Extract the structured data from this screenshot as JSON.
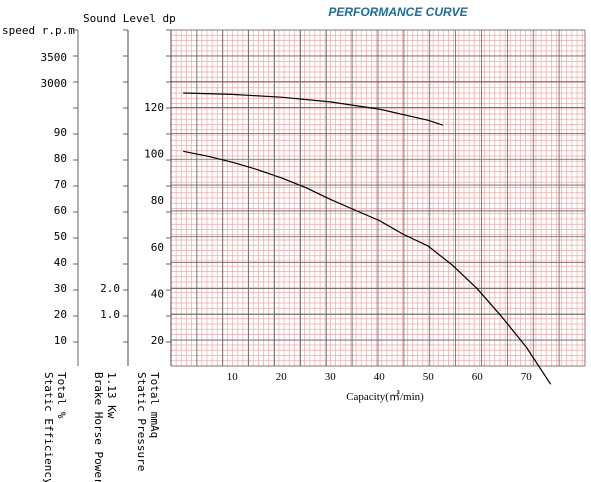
{
  "chart_data": {
    "type": "line",
    "title": "PERFORMANCE CURVE",
    "xlabel": "Capacity(㎥/min)",
    "xlim": [
      -2.5,
      82
    ],
    "x_ticks": [
      "10",
      "20",
      "30",
      "40",
      "50",
      "60",
      "70"
    ],
    "grid": true,
    "series": [
      {
        "x": [
          0,
          10,
          20,
          30,
          40,
          50,
          53
        ],
        "y": [
          126,
          125.4,
          124.2,
          122.2,
          119.1,
          114.3,
          112.2
        ]
      },
      {
        "x": [
          0,
          5,
          10,
          15,
          20,
          25,
          30,
          35,
          40,
          45,
          50,
          55,
          60,
          65,
          70,
          75
        ],
        "y": [
          101,
          98.9,
          96.3,
          93.2,
          89.6,
          85.4,
          80.4,
          75.8,
          71.3,
          65.3,
          60.3,
          52,
          42,
          30,
          17,
          1
        ]
      }
    ],
    "axes": [
      {
        "label": "speed r.p.m",
        "ticks": [
          {
            "label": "3500",
            "value": 3500
          },
          {
            "label": "3000",
            "value": 3000
          }
        ]
      },
      {
        "label": "",
        "ticks": [
          {
            "label": "90",
            "value": 90
          },
          {
            "label": "80",
            "value": 80
          },
          {
            "label": "70",
            "value": 70
          },
          {
            "label": "60",
            "value": 60
          },
          {
            "label": "50",
            "value": 50
          },
          {
            "label": "40",
            "value": 40
          },
          {
            "label": "30",
            "value": 30
          },
          {
            "label": "20",
            "value": 20
          },
          {
            "label": "10",
            "value": 10
          }
        ]
      },
      {
        "label": "Sound Level dp",
        "ticks": [
          {
            "label": "2.0",
            "value": 2.0
          },
          {
            "label": "1.0",
            "value": 1.0
          }
        ]
      },
      {
        "label": "",
        "ticks": [
          {
            "label": "120",
            "value": 120
          },
          {
            "label": "100",
            "value": 100
          },
          {
            "label": "80",
            "value": 80
          },
          {
            "label": "60",
            "value": 60
          },
          {
            "label": "40",
            "value": 40
          },
          {
            "label": "20",
            "value": 20
          }
        ]
      }
    ],
    "bottom_labels": [
      [
        "Total   %",
        "Static Efficiency"
      ],
      [
        "1.13 Kw",
        "Brake Horse Power"
      ],
      [
        "Total mmAq",
        "Static Pressure"
      ]
    ]
  },
  "colors": {
    "title": "#1f6d99",
    "grid_major": "#606060",
    "grid_minor": "#f0a8a8",
    "curve": "#000000"
  }
}
